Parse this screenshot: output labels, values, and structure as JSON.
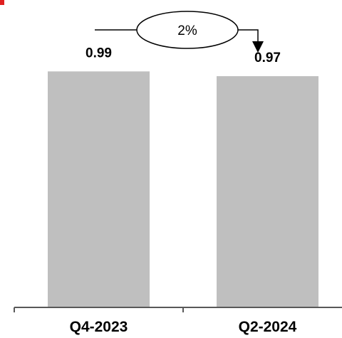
{
  "chart_data": {
    "type": "bar",
    "categories": [
      "Q4-2023",
      "Q2-2024"
    ],
    "values": [
      0.99,
      0.97
    ],
    "value_labels": [
      "0.99",
      "0.97"
    ],
    "ylim": [
      0,
      1.2
    ],
    "grid": false,
    "legend": "none",
    "bar_color": "#bfbfbf",
    "accent_color": "#e02020",
    "annotation": {
      "text": "2%",
      "direction": "down",
      "arrow_icon": "down-arrow-icon"
    }
  }
}
